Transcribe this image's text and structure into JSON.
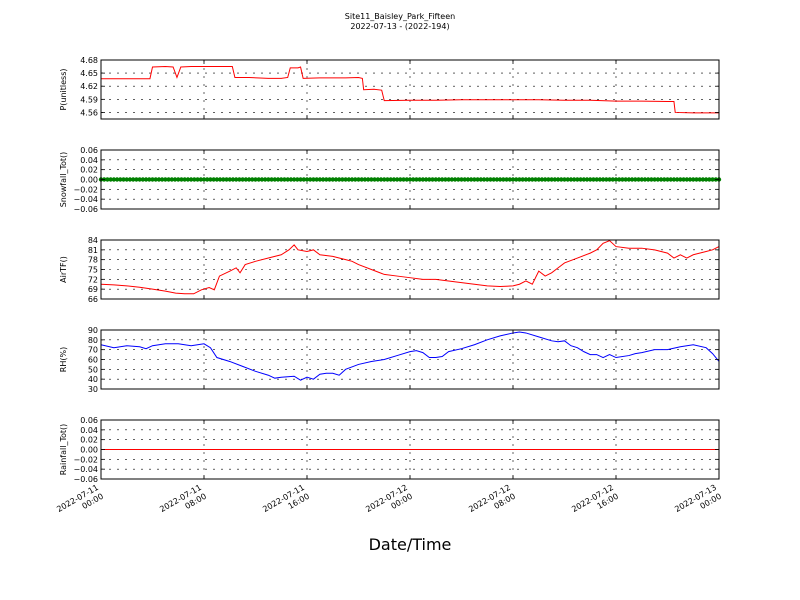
{
  "chart": {
    "title": "Site11_Baisley_Park_Fifteen",
    "subtitle": "2022-07-13 - (2022-194)",
    "xlabel": "Date/Time"
  },
  "colors": {
    "red": "#ff0000",
    "green": "#008000",
    "blue": "#0000ff",
    "axis": "#000000"
  },
  "chart_data": [
    {
      "type": "line",
      "ylabel": "P(unitless)",
      "ylim": [
        4.545,
        4.68
      ],
      "yticks": [
        "4.68",
        "4.65",
        "4.62",
        "4.59",
        "4.56"
      ],
      "ytick_values": [
        4.68,
        4.65,
        4.62,
        4.59,
        4.56
      ],
      "grid": true,
      "xlim": [
        0,
        48
      ],
      "xticks": [
        [
          0,
          "2022-07-11",
          "00:00"
        ],
        [
          8,
          "2022-07-11",
          "08:00"
        ],
        [
          16,
          "2022-07-11",
          "16:00"
        ],
        [
          24,
          "2022-07-12",
          "00:00"
        ],
        [
          32,
          "2022-07-12",
          "08:00"
        ],
        [
          40,
          "2022-07-12",
          "16:00"
        ],
        [
          48,
          "2022-07-13",
          "00:00"
        ]
      ],
      "series": [
        {
          "color": "red",
          "style": "line",
          "values": [
            [
              0,
              4.637
            ],
            [
              1.5,
              4.637
            ],
            [
              3,
              4.637
            ],
            [
              3.8,
              4.637
            ],
            [
              4,
              4.664
            ],
            [
              5,
              4.665
            ],
            [
              5.6,
              4.664
            ],
            [
              5.9,
              4.64
            ],
            [
              6.2,
              4.664
            ],
            [
              7,
              4.665
            ],
            [
              8,
              4.665
            ],
            [
              9,
              4.665
            ],
            [
              10.2,
              4.665
            ],
            [
              10.4,
              4.64
            ],
            [
              11.5,
              4.64
            ],
            [
              13,
              4.638
            ],
            [
              14,
              4.638
            ],
            [
              14.5,
              4.64
            ],
            [
              14.7,
              4.662
            ],
            [
              15.3,
              4.662
            ],
            [
              15.5,
              4.664
            ],
            [
              15.7,
              4.638
            ],
            [
              17,
              4.639
            ],
            [
              18,
              4.639
            ],
            [
              19,
              4.639
            ],
            [
              20,
              4.64
            ],
            [
              20.3,
              4.638
            ],
            [
              20.4,
              4.612
            ],
            [
              21.2,
              4.613
            ],
            [
              21.8,
              4.611
            ],
            [
              22,
              4.587
            ],
            [
              24,
              4.588
            ],
            [
              26,
              4.588
            ],
            [
              28,
              4.589
            ],
            [
              30,
              4.589
            ],
            [
              32,
              4.589
            ],
            [
              34,
              4.589
            ],
            [
              36,
              4.588
            ],
            [
              38,
              4.588
            ],
            [
              40,
              4.586
            ],
            [
              42,
              4.586
            ],
            [
              44,
              4.585
            ],
            [
              44.5,
              4.585
            ],
            [
              44.6,
              4.56
            ],
            [
              46,
              4.559
            ],
            [
              48,
              4.559
            ]
          ]
        }
      ]
    },
    {
      "type": "scatter",
      "ylabel": "Snowfall_Tot()",
      "ylim": [
        -0.06,
        0.06
      ],
      "yticks": [
        "0.06",
        "0.04",
        "0.02",
        "0.00",
        "−0.02",
        "−0.04",
        "−0.06"
      ],
      "ytick_values": [
        0.06,
        0.04,
        0.02,
        0.0,
        -0.02,
        -0.04,
        -0.06
      ],
      "grid": true,
      "xlim": [
        0,
        48
      ],
      "series": [
        {
          "color": "green",
          "style": "dots",
          "constant": 0.0,
          "x_step": 0.25
        }
      ]
    },
    {
      "type": "line",
      "ylabel": "AirTF()",
      "ylim": [
        66,
        84
      ],
      "yticks": [
        "84",
        "81",
        "78",
        "75",
        "72",
        "69",
        "66"
      ],
      "ytick_values": [
        84,
        81,
        78,
        75,
        72,
        69,
        66
      ],
      "grid": true,
      "xlim": [
        0,
        48
      ],
      "series": [
        {
          "color": "red",
          "style": "line",
          "values": [
            [
              0,
              70.5
            ],
            [
              1,
              70.3
            ],
            [
              2,
              70.0
            ],
            [
              3,
              69.6
            ],
            [
              4,
              69.0
            ],
            [
              5,
              68.4
            ],
            [
              5.8,
              67.8
            ],
            [
              6.5,
              67.6
            ],
            [
              7.2,
              67.6
            ],
            [
              7.8,
              68.8
            ],
            [
              8.4,
              69.5
            ],
            [
              8.8,
              68.8
            ],
            [
              9.2,
              73.0
            ],
            [
              10,
              74.5
            ],
            [
              10.5,
              75.5
            ],
            [
              10.8,
              74.0
            ],
            [
              11.2,
              76.5
            ],
            [
              12,
              77.5
            ],
            [
              13,
              78.5
            ],
            [
              14,
              79.5
            ],
            [
              14.6,
              81.0
            ],
            [
              15,
              82.5
            ],
            [
              15.3,
              81.0
            ],
            [
              16,
              80.5
            ],
            [
              16.5,
              81.0
            ],
            [
              17,
              79.5
            ],
            [
              18,
              79.0
            ],
            [
              19,
              78.0
            ],
            [
              19.5,
              77.5
            ],
            [
              20,
              76.5
            ],
            [
              21,
              75.0
            ],
            [
              22,
              73.5
            ],
            [
              23,
              73.0
            ],
            [
              24,
              72.5
            ],
            [
              25,
              72.0
            ],
            [
              26,
              72.0
            ],
            [
              27,
              71.5
            ],
            [
              28,
              71.0
            ],
            [
              29,
              70.5
            ],
            [
              30,
              70.0
            ],
            [
              31,
              69.8
            ],
            [
              32,
              70.0
            ],
            [
              32.5,
              70.5
            ],
            [
              33,
              71.5
            ],
            [
              33.5,
              70.5
            ],
            [
              34,
              74.5
            ],
            [
              34.5,
              73.0
            ],
            [
              35,
              74.0
            ],
            [
              35.5,
              75.5
            ],
            [
              36,
              77.0
            ],
            [
              37,
              78.5
            ],
            [
              38,
              80.0
            ],
            [
              38.5,
              81.0
            ],
            [
              39,
              83.0
            ],
            [
              39.5,
              83.8
            ],
            [
              40,
              82.0
            ],
            [
              41,
              81.5
            ],
            [
              42,
              81.5
            ],
            [
              43,
              81.0
            ],
            [
              44,
              80.0
            ],
            [
              44.5,
              78.5
            ],
            [
              45,
              79.5
            ],
            [
              45.5,
              78.5
            ],
            [
              46,
              79.5
            ],
            [
              47,
              80.5
            ],
            [
              47.5,
              81.0
            ],
            [
              48,
              82.0
            ]
          ]
        }
      ]
    },
    {
      "type": "line",
      "ylabel": "RH(%)",
      "ylim": [
        30,
        90
      ],
      "yticks": [
        "90",
        "80",
        "70",
        "60",
        "50",
        "40",
        "30"
      ],
      "ytick_values": [
        90,
        80,
        70,
        60,
        50,
        40,
        30
      ],
      "grid": true,
      "xlim": [
        0,
        48
      ],
      "series": [
        {
          "color": "blue",
          "style": "line",
          "values": [
            [
              0,
              75
            ],
            [
              1,
              72
            ],
            [
              2,
              74
            ],
            [
              3,
              73
            ],
            [
              3.5,
              71
            ],
            [
              4,
              74
            ],
            [
              5,
              76
            ],
            [
              6,
              76
            ],
            [
              7,
              74
            ],
            [
              7.5,
              75
            ],
            [
              8,
              76
            ],
            [
              8.5,
              72
            ],
            [
              9,
              62
            ],
            [
              10,
              58
            ],
            [
              11,
              53
            ],
            [
              12,
              48
            ],
            [
              13,
              44
            ],
            [
              13.5,
              41
            ],
            [
              14,
              42
            ],
            [
              15,
              43
            ],
            [
              15.5,
              39
            ],
            [
              16,
              42
            ],
            [
              16.5,
              40
            ],
            [
              17,
              45
            ],
            [
              17.5,
              46
            ],
            [
              18,
              46
            ],
            [
              18.5,
              44
            ],
            [
              19,
              50
            ],
            [
              20,
              55
            ],
            [
              21,
              58
            ],
            [
              22,
              60
            ],
            [
              23,
              64
            ],
            [
              24,
              68
            ],
            [
              24.5,
              69
            ],
            [
              25,
              67
            ],
            [
              25.5,
              62
            ],
            [
              26,
              62
            ],
            [
              26.5,
              63
            ],
            [
              27,
              68
            ],
            [
              28,
              71
            ],
            [
              29,
              75
            ],
            [
              30,
              80
            ],
            [
              31,
              84
            ],
            [
              32,
              87
            ],
            [
              32.5,
              88
            ],
            [
              33,
              87
            ],
            [
              34,
              83
            ],
            [
              35,
              79
            ],
            [
              35.5,
              78
            ],
            [
              36,
              79
            ],
            [
              36.5,
              74
            ],
            [
              37,
              72
            ],
            [
              37.5,
              68
            ],
            [
              38,
              65
            ],
            [
              38.5,
              65
            ],
            [
              39,
              62
            ],
            [
              39.5,
              65
            ],
            [
              40,
              62
            ],
            [
              41,
              64
            ],
            [
              41.5,
              66
            ],
            [
              42,
              67
            ],
            [
              43,
              70
            ],
            [
              44,
              70
            ],
            [
              45,
              73
            ],
            [
              46,
              75
            ],
            [
              47,
              72
            ],
            [
              47.5,
              66
            ],
            [
              48,
              58
            ]
          ]
        }
      ]
    },
    {
      "type": "line",
      "ylabel": "Rainfall_Tot()",
      "ylim": [
        -0.06,
        0.06
      ],
      "yticks": [
        "0.06",
        "0.04",
        "0.02",
        "0.00",
        "−0.02",
        "−0.04",
        "−0.06"
      ],
      "ytick_values": [
        0.06,
        0.04,
        0.02,
        0.0,
        -0.02,
        -0.04,
        -0.06
      ],
      "grid": true,
      "xlim": [
        0,
        48
      ],
      "show_xtick_labels": true,
      "series": [
        {
          "color": "red",
          "style": "line",
          "values": [
            [
              0,
              0.0
            ],
            [
              48,
              0.0
            ]
          ]
        }
      ]
    }
  ]
}
